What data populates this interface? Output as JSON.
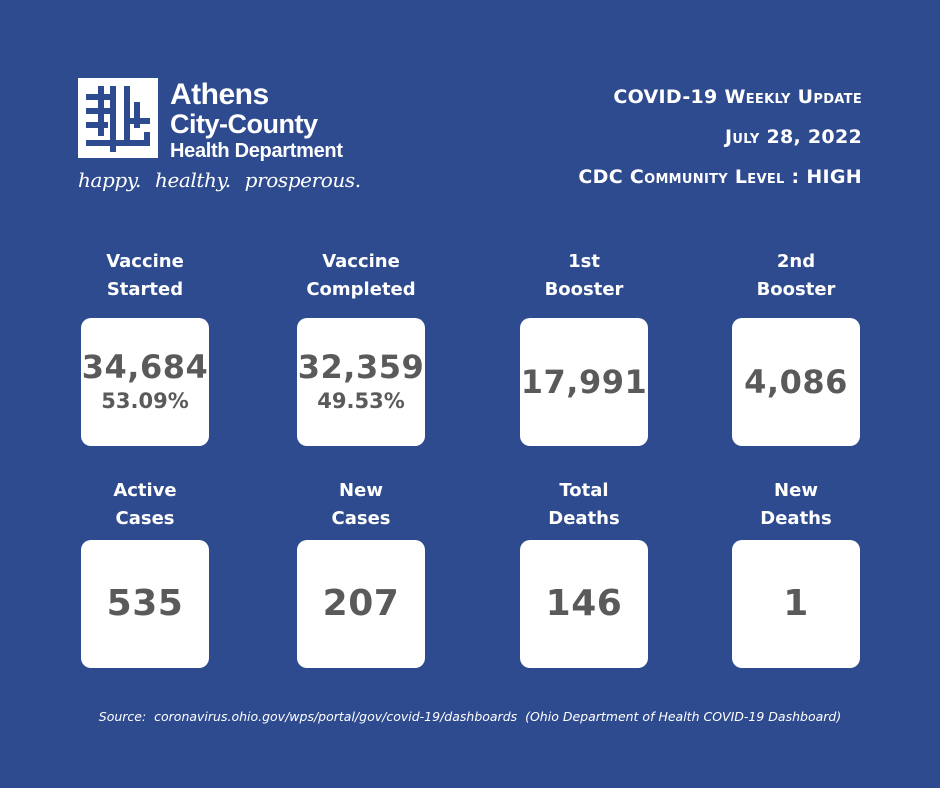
{
  "brand": {
    "line1": "Athens",
    "line2": "City-County",
    "line3": "Health Department",
    "tagline": "happy.  healthy.  prosperous."
  },
  "header": {
    "title": "COVID-19 Weekly Update",
    "date": "July 28, 2022",
    "community_level": "CDC Community Level :  HIGH"
  },
  "stats": [
    {
      "label": "Vaccine\nStarted",
      "value": "34,684",
      "pct": "53.09%"
    },
    {
      "label": "Vaccine\nCompleted",
      "value": "32,359",
      "pct": "49.53%"
    },
    {
      "label": "1st\nBooster",
      "value": "17,991",
      "pct": ""
    },
    {
      "label": "2nd\nBooster",
      "value": "4,086",
      "pct": ""
    },
    {
      "label": "Active\nCases",
      "value": "535",
      "pct": ""
    },
    {
      "label": "New\nCases",
      "value": "207",
      "pct": ""
    },
    {
      "label": "Total\nDeaths",
      "value": "146",
      "pct": ""
    },
    {
      "label": "New\nDeaths",
      "value": "1",
      "pct": ""
    }
  ],
  "source": "Source:  coronavirus.ohio.gov/wps/portal/gov/covid-19/dashboards  (Ohio Department of Health COVID-19 Dashboard)",
  "colors": {
    "background": "#2f4b8f",
    "card": "#ffffff",
    "value_text": "#5a5a5a"
  }
}
